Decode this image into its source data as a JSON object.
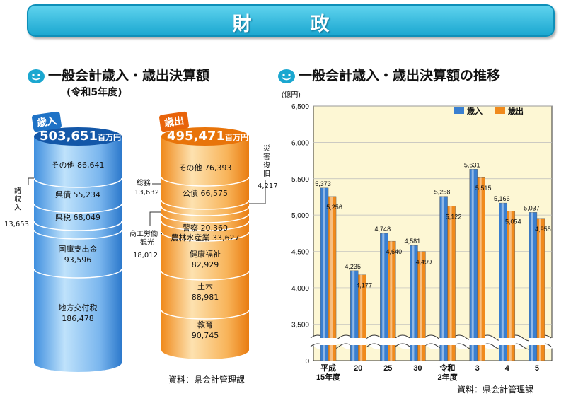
{
  "banner": {
    "title": "財　政"
  },
  "left": {
    "heading": "一般会計歳入・歳出決算額",
    "subheading": "(令和5年度)",
    "revenue": {
      "tag": "歳入",
      "total": "503,651",
      "unit": "百万円",
      "segments": [
        {
          "label": "その他",
          "value": "86,641"
        },
        {
          "label": "県債",
          "value": "55,234"
        },
        {
          "label": "県税",
          "value": "68,049"
        },
        {
          "label": "国庫支出金",
          "value": "93,596"
        },
        {
          "label": "地方交付税",
          "value": "186,478"
        }
      ],
      "small_label": "諸収入",
      "small_value": "13,653"
    },
    "expenditure": {
      "tag": "歳出",
      "total": "495,471",
      "unit": "百万円",
      "segments": [
        {
          "label": "その他",
          "value": "76,393"
        },
        {
          "label": "公債",
          "value": "66,575"
        },
        {
          "label": "警察",
          "value": "20,360"
        },
        {
          "label": "農林水産業",
          "value": "33,627"
        },
        {
          "label": "健康福祉",
          "value": "82,929"
        },
        {
          "label": "土木",
          "value": "88,981"
        },
        {
          "label": "教育",
          "value": "90,745"
        }
      ],
      "small_items": [
        {
          "label": "総務",
          "value": "13,632"
        },
        {
          "label": "商工労働・観光",
          "value": "18,012"
        },
        {
          "label": "災害復旧",
          "value": "4,217"
        }
      ]
    },
    "source": "資料：県会計管理課"
  },
  "right": {
    "heading": "一般会計歳入・歳出決算額の推移",
    "source": "資料：県会計管理課"
  },
  "colors": {
    "revenue": "#3a7fd0",
    "expenditure": "#f08a1c",
    "plot_bg": "#fdf7d4"
  },
  "chart_data": {
    "type": "bar",
    "title": "一般会計歳入・歳出決算額の推移",
    "ylabel": "(億円)",
    "ylim": [
      0,
      6500
    ],
    "axis_break": [
      0,
      3250
    ],
    "yticks": [
      0,
      3500,
      4000,
      4500,
      5000,
      5500,
      6000,
      6500
    ],
    "ytick_labels": [
      "0",
      "3,500",
      "4,000",
      "4,500",
      "5,000",
      "5,500",
      "6,000",
      "6,500"
    ],
    "categories": [
      "平成15年度",
      "20",
      "25",
      "30",
      "令和2年度",
      "3",
      "4",
      "5"
    ],
    "category_lines": [
      [
        "平成",
        "15年度"
      ],
      [
        "20"
      ],
      [
        "25"
      ],
      [
        "30"
      ],
      [
        "令和",
        "2年度"
      ],
      [
        "3"
      ],
      [
        "4"
      ],
      [
        "5"
      ]
    ],
    "legend": "top-right",
    "series": [
      {
        "name": "歳入",
        "values": [
          5373,
          4235,
          4748,
          4581,
          5258,
          5631,
          5166,
          5037
        ],
        "labels": [
          "5,373",
          "4,235",
          "4,748",
          "4,581",
          "5,258",
          "5,631",
          "5,166",
          "5,037"
        ]
      },
      {
        "name": "歳出",
        "values": [
          5256,
          4177,
          4640,
          4499,
          5122,
          5515,
          5054,
          4955
        ],
        "labels": [
          "5,256",
          "4,177",
          "4,640",
          "4,499",
          "5,122",
          "5,515",
          "5,054",
          "4,955"
        ]
      }
    ]
  }
}
